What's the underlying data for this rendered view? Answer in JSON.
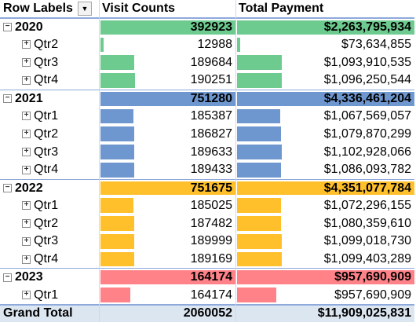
{
  "header": {
    "row_labels": "Row Labels",
    "visit_counts": "Visit Counts",
    "total_payment": "Total Payment"
  },
  "icons": {
    "expand": "plus-box-icon",
    "collapse": "minus-box-icon",
    "filter": "filter-dropdown-icon"
  },
  "colors": {
    "2020": "#6dcb8f",
    "2021": "#6f97cf",
    "2022": "#ffc02b",
    "2023": "#ff8289"
  },
  "max_visits": 751675,
  "max_payment": 4351077784,
  "rows": [
    {
      "label": "2020",
      "visits": "392923",
      "payment": "$2,263,795,934",
      "visits_num": 392923,
      "payment_num": 2263795934,
      "type": "year",
      "group": "2020"
    },
    {
      "label": "Qtr2",
      "visits": "12988",
      "payment": "$73,634,855",
      "visits_num": 12988,
      "payment_num": 73634855,
      "type": "qtr",
      "group": "2020"
    },
    {
      "label": "Qtr3",
      "visits": "189684",
      "payment": "$1,093,910,535",
      "visits_num": 189684,
      "payment_num": 1093910535,
      "type": "qtr",
      "group": "2020"
    },
    {
      "label": "Qtr4",
      "visits": "190251",
      "payment": "$1,096,250,544",
      "visits_num": 190251,
      "payment_num": 1096250544,
      "type": "qtr",
      "group": "2020"
    },
    {
      "label": "2021",
      "visits": "751280",
      "payment": "$4,336,461,204",
      "visits_num": 751280,
      "payment_num": 4336461204,
      "type": "year",
      "group": "2021"
    },
    {
      "label": "Qtr1",
      "visits": "185387",
      "payment": "$1,067,569,057",
      "visits_num": 185387,
      "payment_num": 1067569057,
      "type": "qtr",
      "group": "2021"
    },
    {
      "label": "Qtr2",
      "visits": "186827",
      "payment": "$1,079,870,299",
      "visits_num": 186827,
      "payment_num": 1079870299,
      "type": "qtr",
      "group": "2021"
    },
    {
      "label": "Qtr3",
      "visits": "189633",
      "payment": "$1,102,928,066",
      "visits_num": 189633,
      "payment_num": 1102928066,
      "type": "qtr",
      "group": "2021"
    },
    {
      "label": "Qtr4",
      "visits": "189433",
      "payment": "$1,086,093,782",
      "visits_num": 189433,
      "payment_num": 1086093782,
      "type": "qtr",
      "group": "2021"
    },
    {
      "label": "2022",
      "visits": "751675",
      "payment": "$4,351,077,784",
      "visits_num": 751675,
      "payment_num": 4351077784,
      "type": "year",
      "group": "2022"
    },
    {
      "label": "Qtr1",
      "visits": "185025",
      "payment": "$1,072,296,155",
      "visits_num": 185025,
      "payment_num": 1072296155,
      "type": "qtr",
      "group": "2022"
    },
    {
      "label": "Qtr2",
      "visits": "187482",
      "payment": "$1,080,359,610",
      "visits_num": 187482,
      "payment_num": 1080359610,
      "type": "qtr",
      "group": "2022"
    },
    {
      "label": "Qtr3",
      "visits": "189999",
      "payment": "$1,099,018,730",
      "visits_num": 189999,
      "payment_num": 1099018730,
      "type": "qtr",
      "group": "2022"
    },
    {
      "label": "Qtr4",
      "visits": "189169",
      "payment": "$1,099,403,289",
      "visits_num": 189169,
      "payment_num": 1099403289,
      "type": "qtr",
      "group": "2022"
    },
    {
      "label": "2023",
      "visits": "164174",
      "payment": "$957,690,909",
      "visits_num": 164174,
      "payment_num": 957690909,
      "type": "year",
      "group": "2023"
    },
    {
      "label": "Qtr1",
      "visits": "164174",
      "payment": "$957,690,909",
      "visits_num": 164174,
      "payment_num": 957690909,
      "type": "qtr",
      "group": "2023"
    }
  ],
  "grand_total": {
    "label": "Grand Total",
    "visits": "2060052",
    "payment": "$11,909,025,831"
  }
}
